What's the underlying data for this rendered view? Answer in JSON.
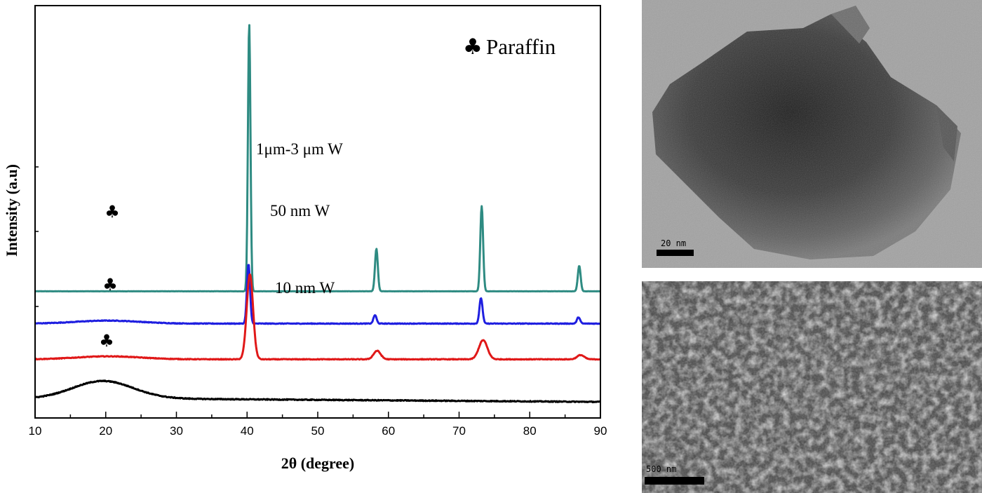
{
  "chart_data": {
    "type": "line",
    "xlabel": "2θ (degree)",
    "ylabel": "Intensity (a.u)",
    "xlim": [
      10,
      90
    ],
    "xticks": [
      10,
      20,
      30,
      40,
      50,
      60,
      70,
      80,
      90
    ],
    "yticks_shown": false,
    "grid": false,
    "legend": {
      "marker": "♣",
      "text": "Paraffin",
      "position": "top-right"
    },
    "series": [
      {
        "name": "1μm-3 μm W",
        "color": "#2e8b82",
        "baseline": 0.98,
        "noise": 0.002,
        "hump": null,
        "peaks": [
          {
            "x": 40.3,
            "h": 6.3,
            "w": 0.18
          },
          {
            "x": 58.3,
            "h": 1.0,
            "w": 0.2
          },
          {
            "x": 73.2,
            "h": 2.0,
            "w": 0.2
          },
          {
            "x": 87.0,
            "h": 0.6,
            "w": 0.2
          }
        ],
        "paraffin_marker": false
      },
      {
        "name": "50 nm W",
        "color": "#1f1fe0",
        "baseline": 0.22,
        "noise": 0.008,
        "hump": {
          "x": 20.3,
          "h": 0.07,
          "w": 4.5
        },
        "peaks": [
          {
            "x": 40.2,
            "h": 1.4,
            "w": 0.22
          },
          {
            "x": 58.1,
            "h": 0.2,
            "w": 0.22
          },
          {
            "x": 73.1,
            "h": 0.6,
            "w": 0.22
          },
          {
            "x": 86.9,
            "h": 0.15,
            "w": 0.22
          }
        ],
        "paraffin_marker": true
      },
      {
        "name": "10 nm W",
        "color": "#e01818",
        "baseline": -0.62,
        "noise": 0.008,
        "hump": {
          "x": 20.4,
          "h": 0.07,
          "w": 4.5
        },
        "peaks": [
          {
            "x": 40.4,
            "h": 2.0,
            "w": 0.45
          },
          {
            "x": 58.4,
            "h": 0.2,
            "w": 0.5
          },
          {
            "x": 73.4,
            "h": 0.45,
            "w": 0.6
          },
          {
            "x": 87.2,
            "h": 0.1,
            "w": 0.5
          }
        ],
        "paraffin_marker": true
      },
      {
        "name": "",
        "color": "#000000",
        "baseline": -1.55,
        "noise": 0.01,
        "hump": {
          "x": 19.6,
          "h": 0.42,
          "w": 4.3
        },
        "peaks": [],
        "paraffin_marker": true
      }
    ]
  },
  "images": {
    "tem": {
      "description_color": "#9a9a9a",
      "scale_bar": "20 nm"
    },
    "sem": {
      "description_color": "#6e6e6e",
      "scale_bar": "500 nm"
    }
  }
}
